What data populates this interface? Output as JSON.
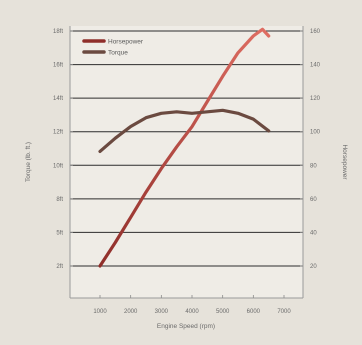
{
  "chart_data": {
    "type": "line",
    "xlabel": "Engine Speed (rpm)",
    "ylabel_left": "Torque (lb. ft.)",
    "ylabel_right": "Horsepower",
    "x_ticks": [
      "1000",
      "2000",
      "3000",
      "4000",
      "5000",
      "6000",
      "7000"
    ],
    "x_range": [
      1000,
      7000
    ],
    "y_left_ticks": [
      "2ft",
      "5ft",
      "8ft",
      "10ft",
      "12ft",
      "14ft",
      "16ft",
      "18ft"
    ],
    "y_left_range": [
      2,
      18
    ],
    "y_right_ticks": [
      "20",
      "40",
      "60",
      "80",
      "100",
      "120",
      "140",
      "160"
    ],
    "y_right_range": [
      20,
      160
    ],
    "grid": true,
    "legend_position": "top-left",
    "series": [
      {
        "name": "Horsepower",
        "axis": "right",
        "color": "#8f2e2a",
        "color_end": "#df6e63",
        "x": [
          1000,
          1500,
          2000,
          2500,
          3000,
          3500,
          4000,
          4500,
          5000,
          5500,
          6000,
          6300,
          6500
        ],
        "y": [
          20,
          34,
          49,
          64,
          78,
          91,
          103,
          118,
          133,
          147,
          157,
          161,
          157
        ]
      },
      {
        "name": "Torque",
        "axis": "left",
        "color": "#6b4a40",
        "x": [
          1000,
          1500,
          2000,
          2500,
          3000,
          3500,
          4000,
          4500,
          5000,
          5500,
          6000,
          6500
        ],
        "y": [
          9.8,
          10.7,
          11.5,
          12.1,
          12.4,
          12.5,
          12.4,
          12.5,
          12.6,
          12.4,
          12.0,
          11.2
        ]
      }
    ]
  }
}
